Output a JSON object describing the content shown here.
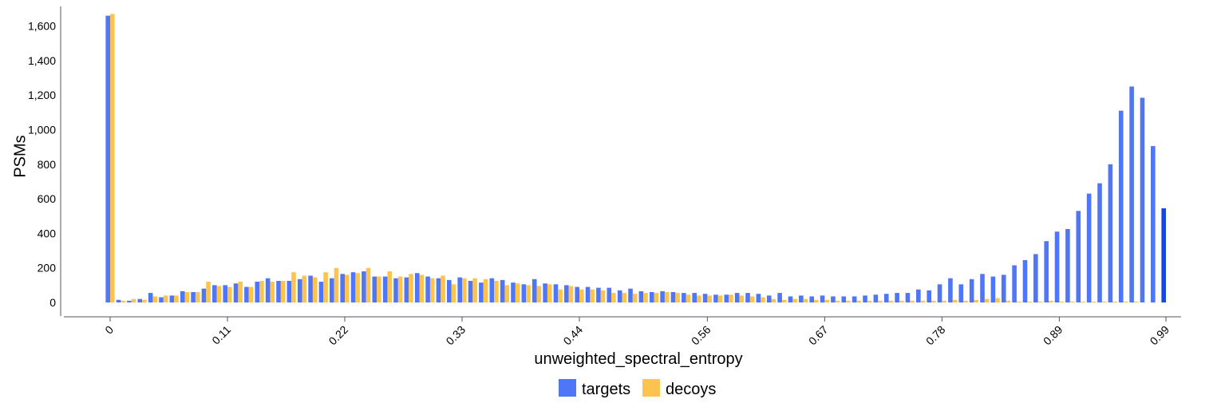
{
  "colors": {
    "targets": "#4f76f6",
    "decoys": "#fcc44f",
    "axis": "#555555",
    "highlight": "#1447e6"
  },
  "chart_data": {
    "type": "bar",
    "xlabel": "unweighted_spectral_entropy",
    "ylabel": "PSMs",
    "ylim": [
      0,
      1700
    ],
    "xlim": [
      0,
      0.99
    ],
    "yticks": [
      0,
      200,
      400,
      600,
      800,
      1000,
      1200,
      1400,
      1600
    ],
    "ytick_labels": [
      "0",
      "200",
      "400",
      "600",
      "800",
      "1,000",
      "1,200",
      "1,400",
      "1,600"
    ],
    "xticks": [
      0,
      0.11,
      0.22,
      0.33,
      0.44,
      0.56,
      0.67,
      0.78,
      0.89,
      0.99
    ],
    "xtick_labels": [
      "0",
      "0.11",
      "0.22",
      "0.33",
      "0.44",
      "0.56",
      "0.67",
      "0.78",
      "0.89",
      "0.99"
    ],
    "legend": {
      "placement": "bottom",
      "entries": [
        "targets",
        "decoys"
      ]
    },
    "grid": false,
    "series": [
      {
        "name": "targets",
        "values": [
          1660,
          15,
          10,
          20,
          55,
          30,
          40,
          65,
          60,
          80,
          100,
          100,
          110,
          90,
          120,
          140,
          125,
          125,
          135,
          155,
          120,
          140,
          165,
          175,
          180,
          150,
          150,
          140,
          145,
          170,
          150,
          140,
          130,
          145,
          125,
          115,
          140,
          130,
          115,
          105,
          135,
          110,
          105,
          100,
          90,
          90,
          85,
          85,
          70,
          80,
          65,
          60,
          65,
          60,
          55,
          55,
          50,
          45,
          45,
          55,
          55,
          50,
          40,
          55,
          35,
          40,
          35,
          40,
          35,
          35,
          35,
          40,
          45,
          50,
          55,
          55,
          75,
          70,
          105,
          140,
          105,
          135,
          165,
          150,
          160,
          215,
          245,
          280,
          355,
          410,
          425,
          530,
          630,
          690,
          800,
          1110,
          1250,
          1185,
          905,
          545
        ]
      },
      {
        "name": "decoys",
        "values": [
          1670,
          10,
          20,
          15,
          35,
          40,
          40,
          60,
          60,
          120,
          95,
          90,
          120,
          90,
          125,
          120,
          125,
          175,
          155,
          145,
          175,
          200,
          160,
          170,
          200,
          150,
          180,
          150,
          165,
          160,
          140,
          155,
          105,
          140,
          140,
          135,
          125,
          100,
          110,
          100,
          95,
          105,
          75,
          95,
          75,
          75,
          70,
          55,
          55,
          50,
          55,
          55,
          60,
          55,
          45,
          40,
          40,
          40,
          45,
          40,
          35,
          30,
          20,
          15,
          20,
          20,
          15,
          15,
          10,
          10,
          10,
          10,
          10,
          10,
          10,
          10,
          10,
          10,
          10,
          15,
          10,
          15,
          20,
          25,
          10,
          5,
          5,
          5,
          10,
          5,
          5,
          5,
          5,
          5,
          5,
          5,
          5,
          0,
          0,
          0
        ]
      }
    ]
  }
}
